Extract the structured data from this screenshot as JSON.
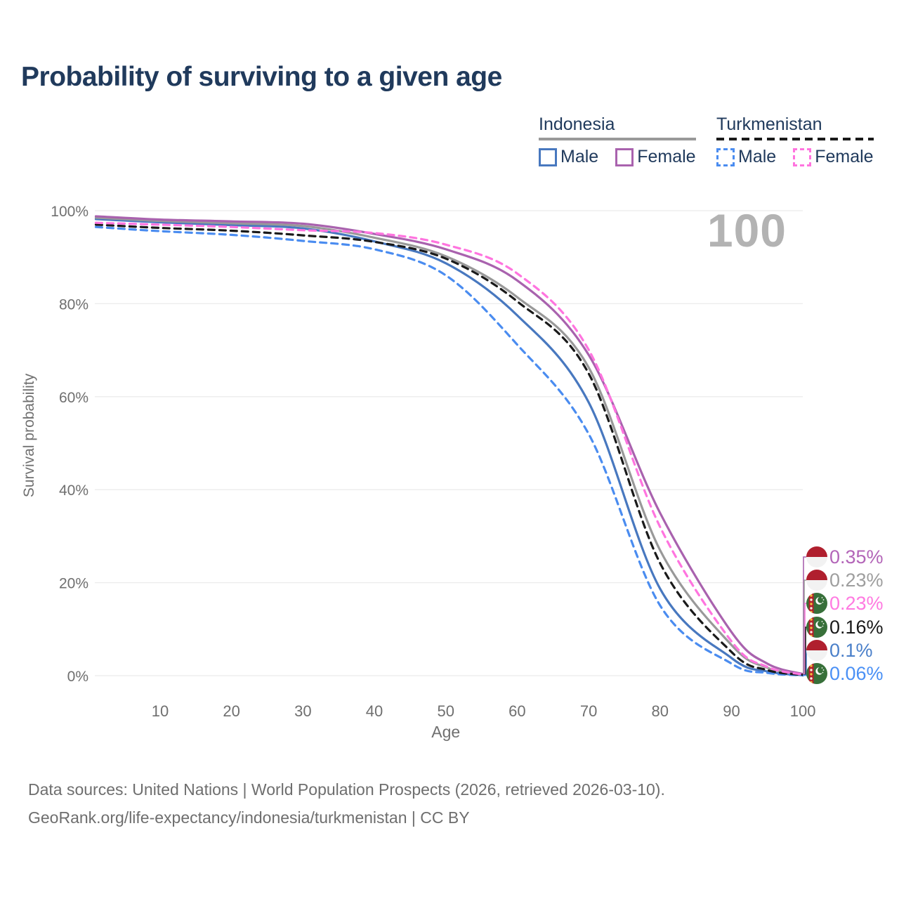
{
  "page": {
    "title": "Probability of surviving to a given age"
  },
  "legend": {
    "indonesia": {
      "title": "Indonesia",
      "male": "Male",
      "female": "Female"
    },
    "turkmenistan": {
      "title": "Turkmenistan",
      "male": "Male",
      "female": "Female"
    }
  },
  "footer": {
    "line1": "Data sources: United Nations | World Population Prospects (2026, retrieved 2026-03-10).",
    "line2": "GeoRank.org/life-expectancy/indonesia/turkmenistan | CC BY"
  },
  "chart_data": {
    "type": "line",
    "title": "Probability of surviving to a given age",
    "xlabel": "Age",
    "ylabel": "Survival probability",
    "watermark": "100",
    "xlim": [
      1,
      100
    ],
    "ylim": [
      0,
      100
    ],
    "grid": "horizontal",
    "legend_position": "top-right",
    "xticks": [
      10,
      20,
      30,
      40,
      50,
      60,
      70,
      80,
      90,
      100
    ],
    "yticks": [
      0,
      20,
      40,
      60,
      80,
      100
    ],
    "ytick_suffix": "%",
    "x_ages": [
      1,
      10,
      20,
      30,
      40,
      50,
      60,
      70,
      80,
      90,
      95,
      100
    ],
    "series": [
      {
        "name": "Indonesia Male",
        "country": "indonesia",
        "sex": "male",
        "style": "solid",
        "color": "#4878bf",
        "end_label": "0.1%",
        "end_label_color": "#4a7fc9",
        "values": [
          98.2,
          97.5,
          96.9,
          96.2,
          93.4,
          88.7,
          77.5,
          58.8,
          18.7,
          3.8,
          0.9,
          0.1
        ]
      },
      {
        "name": "Indonesia Both sexes",
        "country": "indonesia",
        "sex": "both",
        "style": "solid",
        "color": "#999999",
        "end_label": "0.23%",
        "end_label_color": "#9e9e9e",
        "values": [
          98.5,
          97.8,
          97.3,
          96.7,
          94.2,
          90.2,
          81.4,
          66.3,
          27.0,
          6.6,
          1.7,
          0.23
        ]
      },
      {
        "name": "Indonesia Female",
        "country": "indonesia",
        "sex": "female",
        "style": "solid",
        "color": "#a962ae",
        "end_label": "0.35%",
        "end_label_color": "#b365b8",
        "values": [
          98.8,
          98.1,
          97.7,
          97.2,
          95.0,
          91.7,
          85.0,
          69.0,
          35.0,
          9.4,
          2.6,
          0.35
        ]
      },
      {
        "name": "Turkmenistan Male",
        "country": "turkmenistan",
        "sex": "male",
        "style": "dashed",
        "color": "#4a8cf0",
        "end_label": "0.06%",
        "end_label_color": "#4a90f5",
        "values": [
          96.5,
          95.6,
          94.8,
          93.5,
          91.7,
          86.1,
          71.2,
          52.0,
          15.1,
          2.6,
          0.6,
          0.06
        ]
      },
      {
        "name": "Turkmenistan Both sexes",
        "country": "turkmenistan",
        "sex": "both",
        "style": "dashed",
        "color": "#1a1a1a",
        "end_label": "0.16%",
        "end_label_color": "#1a1a1a",
        "values": [
          97.0,
          96.3,
          95.7,
          94.7,
          93.3,
          89.7,
          80.5,
          65.0,
          24.2,
          5.1,
          1.2,
          0.16
        ]
      },
      {
        "name": "Turkmenistan Female",
        "country": "turkmenistan",
        "sex": "female",
        "style": "dashed",
        "color": "#ff74df",
        "end_label": "0.23%",
        "end_label_color": "#ff7ae1",
        "values": [
          97.4,
          97.0,
          96.5,
          95.8,
          95.2,
          92.7,
          86.5,
          70.1,
          32.0,
          7.4,
          1.9,
          0.23
        ]
      }
    ],
    "draw_order": [
      "Indonesia Male",
      "Indonesia Both sexes",
      "Indonesia Female",
      "Turkmenistan Male",
      "Turkmenistan Both sexes",
      "Turkmenistan Female"
    ],
    "end_label_order": [
      "Indonesia Female",
      "Indonesia Both sexes",
      "Turkmenistan Female",
      "Turkmenistan Both sexes",
      "Indonesia Male",
      "Turkmenistan Male"
    ]
  }
}
